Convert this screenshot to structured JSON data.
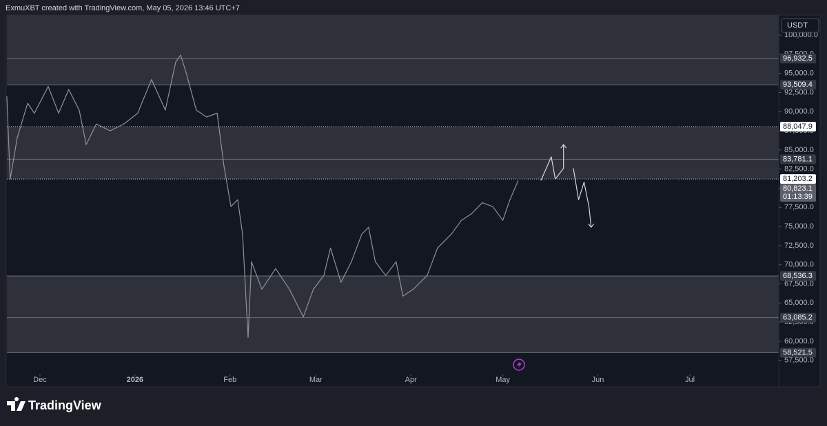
{
  "header": {
    "caption": "ExmuXBT created with TradingView.com, May 05, 2026 13:46 UTC+7",
    "currency": "USDT"
  },
  "chart_data": {
    "type": "line",
    "xlim": [
      0,
      252
    ],
    "xticks": [
      {
        "value": 11,
        "label": "Dec"
      },
      {
        "value": 42,
        "label": "2026"
      },
      {
        "value": 73,
        "label": "Feb"
      },
      {
        "value": 101,
        "label": "Mar"
      },
      {
        "value": 132,
        "label": "Apr"
      },
      {
        "value": 162,
        "label": "May"
      },
      {
        "value": 193,
        "label": "Jun"
      },
      {
        "value": 223,
        "label": "Jul"
      }
    ],
    "ylim": [
      56040,
      102610
    ],
    "yticks": [
      {
        "value": 57500,
        "label": "57,500.0"
      },
      {
        "value": 60000,
        "label": "60,000.0"
      },
      {
        "value": 62500,
        "label": "62,500.0"
      },
      {
        "value": 65000,
        "label": "65,000.0"
      },
      {
        "value": 67500,
        "label": "67,500.0"
      },
      {
        "value": 70000,
        "label": "70,000.0"
      },
      {
        "value": 72500,
        "label": "72,500.0"
      },
      {
        "value": 75000,
        "label": "75,000.0"
      },
      {
        "value": 77500,
        "label": "77,500.0"
      },
      {
        "value": 80000,
        "label": "80,000.0"
      },
      {
        "value": 82500,
        "label": "82,500.0"
      },
      {
        "value": 85000,
        "label": "85,000.0"
      },
      {
        "value": 87500,
        "label": "87,500.0"
      },
      {
        "value": 90000,
        "label": "90,000.0"
      },
      {
        "value": 92500,
        "label": "92,500.0"
      },
      {
        "value": 95000,
        "label": "95,000.0"
      },
      {
        "value": 97500,
        "label": "97,500.0"
      },
      {
        "value": 100000,
        "label": "100,000.0"
      }
    ],
    "zones": [
      {
        "from": 93509.4,
        "to": 102610,
        "color": "#2e313a"
      },
      {
        "from": 81203.2,
        "to": 88047.9,
        "color": "#2e313a"
      },
      {
        "from": 58521.5,
        "to": 68536.3,
        "color": "#2e313a"
      }
    ],
    "levels": [
      {
        "value": 96932.5,
        "label": "96,932.5",
        "line": "solid",
        "box": "dark"
      },
      {
        "value": 93509.4,
        "label": "93,509.4",
        "line": "solid",
        "box": "dark"
      },
      {
        "value": 88047.9,
        "label": "88,047.9",
        "line": "dotted",
        "box": "light"
      },
      {
        "value": 83781.1,
        "label": "83,781.1",
        "line": "solid",
        "box": "dark"
      },
      {
        "value": 81203.2,
        "label": "81,203.2",
        "line": "dotted",
        "box": "light"
      },
      {
        "value": 68536.3,
        "label": "68,536.3",
        "line": "solid",
        "box": "dark"
      },
      {
        "value": 63085.2,
        "label": "63,085.2",
        "line": "solid",
        "box": "dark"
      },
      {
        "value": 58521.5,
        "label": "58,521.5",
        "line": "solid",
        "box": "dark"
      }
    ],
    "last_price": {
      "value": 80823.1,
      "label": "80,823.1",
      "countdown": "01:13:39"
    },
    "series": [
      {
        "color": "#8f929a",
        "x": [
          0.2,
          1.3,
          3.6,
          7.0,
          9.2,
          13.7,
          17.1,
          20.4,
          23.8,
          26.1,
          29.4,
          33.9,
          38.4,
          42.9,
          47.4,
          51.9,
          55.3,
          56.9,
          58.7,
          62.0,
          65.4,
          68.8,
          71.0,
          73.3,
          75.5,
          77.1,
          78.4,
          78.9,
          80.0,
          83.4,
          87.9,
          92.4,
          96.9,
          100.2,
          103.6,
          105.8,
          109.2,
          112.6,
          116.0,
          118.2,
          120.4,
          123.8,
          127.2,
          129.4,
          132.8,
          137.3,
          140.7,
          145.2,
          148.5,
          151.9,
          155.3,
          158.7,
          162.0,
          164.3,
          167.0
        ],
        "values": [
          92000,
          81200,
          86600,
          91100,
          89800,
          93300,
          89800,
          92900,
          90200,
          85700,
          88400,
          87500,
          88400,
          89800,
          94200,
          90200,
          96500,
          97400,
          95100,
          90200,
          89300,
          89800,
          83000,
          77600,
          78500,
          74000,
          64100,
          60500,
          70400,
          66800,
          69500,
          66800,
          63200,
          66800,
          68600,
          72200,
          67700,
          70400,
          74000,
          74900,
          70400,
          68600,
          70400,
          65900,
          66800,
          68600,
          72200,
          74000,
          75800,
          76700,
          78100,
          77600,
          75800,
          78500,
          81000
        ]
      },
      {
        "color": "#d6d7da",
        "x": [
          174.4,
          177.8,
          179.1,
          181.8,
          181.8,
          183.4,
          185.0,
          186.7,
          188.5,
          190.1,
          190.8
        ],
        "values": [
          81000,
          84100,
          81200,
          82600,
          85700,
          null,
          82600,
          78500,
          80800,
          77600,
          74900
        ]
      }
    ]
  },
  "footer": {
    "brand": "TradingView"
  }
}
